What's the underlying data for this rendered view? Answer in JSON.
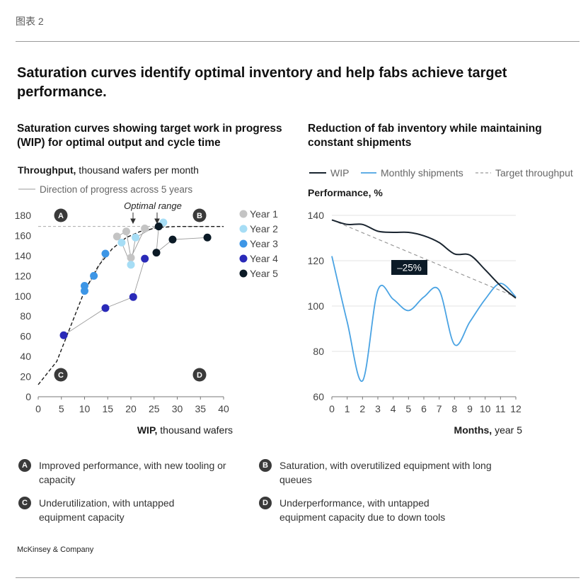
{
  "header": {
    "exhibit_label": "图表 2",
    "title": "Saturation curves identify optimal inventory and help fabs achieve target performance."
  },
  "left_panel": {
    "subtitle": "Saturation curves showing target work in progress (WIP) for optimal output and cycle time",
    "ylabel_bold": "Throughput,",
    "ylabel_rest": " thousand wafers per month",
    "direction_note": "Direction of progress across 5 years",
    "xlabel_bold": "WIP,",
    "xlabel_rest": " thousand wafers",
    "optimal_range": "Optimal range",
    "quadrants": [
      "A",
      "B",
      "C",
      "D"
    ]
  },
  "right_panel": {
    "subtitle": "Reduction of fab inventory while maintaining constant shipments",
    "legend": [
      "WIP",
      "Monthly shipments",
      "Target throughput"
    ],
    "ylabel": "Performance, %",
    "xlabel_bold": "Months,",
    "xlabel_rest": " year 5",
    "reduction_label": "–25%"
  },
  "annotations": [
    {
      "badge": "A",
      "text": "Improved performance, with new tooling or capacity"
    },
    {
      "badge": "B",
      "text": "Saturation, with overutilized equipment with long queues"
    },
    {
      "badge": "C",
      "text": "Underutilization, with untapped equipment capacity"
    },
    {
      "badge": "D",
      "text": "Underperformance, with untapped equipment capacity due to down tools"
    }
  ],
  "source": "McKinsey & Company",
  "chart_data": [
    {
      "type": "scatter",
      "xlabel": "WIP, thousand wafers",
      "ylabel": "Throughput, thousand wafers per month",
      "xlim": [
        0,
        40
      ],
      "ylim": [
        0,
        180
      ],
      "xticks": [
        0,
        5,
        10,
        15,
        20,
        25,
        30,
        35,
        40
      ],
      "yticks": [
        0,
        20,
        40,
        60,
        80,
        100,
        120,
        140,
        160,
        180
      ],
      "target_line": 169,
      "series": [
        {
          "name": "Year 1",
          "color": "#c4c4c4",
          "points": [
            [
              17,
              159
            ],
            [
              19,
              164
            ],
            [
              20,
              138
            ],
            [
              23,
              167
            ]
          ]
        },
        {
          "name": "Year 2",
          "color": "#a6ddf5",
          "points": [
            [
              18,
              153
            ],
            [
              20,
              131
            ],
            [
              21,
              158
            ],
            [
              27,
              173
            ]
          ]
        },
        {
          "name": "Year 3",
          "color": "#3d96e6",
          "points": [
            [
              10,
              110
            ],
            [
              10,
              105
            ],
            [
              12,
              120
            ],
            [
              14.5,
              142
            ]
          ]
        },
        {
          "name": "Year 4",
          "color": "#2a2ab8",
          "points": [
            [
              5.5,
              61
            ],
            [
              14.5,
              88
            ],
            [
              20.5,
              99
            ],
            [
              23,
              137
            ]
          ]
        },
        {
          "name": "Year 5",
          "color": "#0b1a26",
          "points": [
            [
              26,
              169
            ],
            [
              25.5,
              143
            ],
            [
              29,
              156
            ],
            [
              36.5,
              158
            ]
          ]
        }
      ],
      "saturation_curve": [
        [
          0,
          12
        ],
        [
          4,
          35
        ],
        [
          7,
          70
        ],
        [
          10,
          105
        ],
        [
          13,
          130
        ],
        [
          16,
          147
        ],
        [
          19,
          158
        ],
        [
          22,
          164
        ],
        [
          26,
          168
        ],
        [
          30,
          169
        ],
        [
          40,
          169
        ]
      ]
    },
    {
      "type": "line",
      "xlabel": "Months, year 5",
      "ylabel": "Performance, %",
      "xlim": [
        0,
        12
      ],
      "ylim": [
        60,
        140
      ],
      "xticks": [
        0,
        1,
        2,
        3,
        4,
        5,
        6,
        7,
        8,
        9,
        10,
        11,
        12
      ],
      "yticks": [
        60,
        80,
        100,
        120,
        140
      ],
      "series": [
        {
          "name": "WIP",
          "color": "#1a2530",
          "x": [
            0,
            1,
            2,
            3,
            4,
            5,
            6,
            7,
            8,
            9,
            10,
            11,
            12
          ],
          "y": [
            138,
            136,
            136,
            133,
            132.5,
            132.5,
            131,
            128,
            123,
            122.5,
            116,
            109,
            103.5
          ]
        },
        {
          "name": "Monthly shipments",
          "color": "#4aa3e3",
          "x": [
            0,
            1,
            2,
            3,
            4,
            5,
            6,
            7,
            8,
            9,
            10,
            11,
            12
          ],
          "y": [
            122,
            93,
            67,
            107,
            103,
            98,
            104,
            107,
            83,
            93,
            103,
            110,
            104
          ]
        },
        {
          "name": "Target throughput",
          "color": "#9a9a9a",
          "dashed": true,
          "x": [
            0,
            12
          ],
          "y": [
            138,
            104
          ]
        }
      ],
      "annotation": "–25%"
    }
  ]
}
